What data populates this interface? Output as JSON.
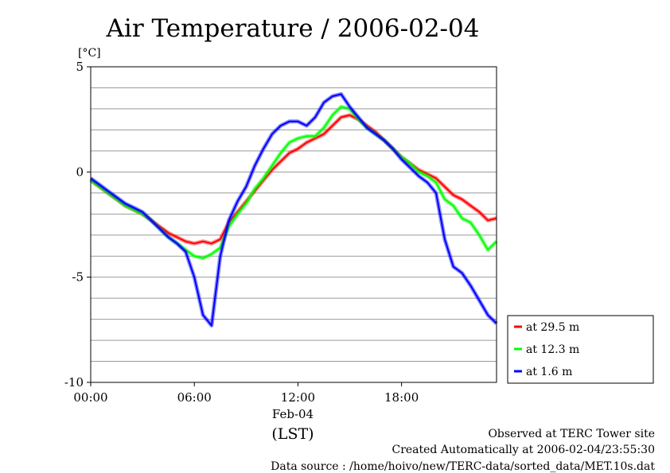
{
  "chart_data": {
    "type": "line",
    "title": "Air Temperature / 2006-02-04",
    "yunit": "[°C]",
    "ylim": [
      -10,
      5
    ],
    "yticks": [
      "5",
      "0",
      "-5",
      "-10"
    ],
    "xlim": [
      0,
      23.5
    ],
    "xticks": [
      "00:00",
      "06:00",
      "12:00",
      "18:00"
    ],
    "xdate": "Feb-04",
    "xlabel": "(LST)",
    "grid": "horizontal",
    "legend_position": "right",
    "x": [
      0,
      0.5,
      1,
      1.5,
      2,
      2.5,
      3,
      3.5,
      4,
      4.5,
      5,
      5.5,
      6,
      6.5,
      7,
      7.5,
      8,
      8.5,
      9,
      9.5,
      10,
      10.5,
      11,
      11.5,
      12,
      12.5,
      13,
      13.5,
      14,
      14.5,
      15,
      15.5,
      16,
      16.5,
      17,
      17.5,
      18,
      18.5,
      19,
      19.5,
      20,
      20.5,
      21,
      21.5,
      22,
      22.5,
      23,
      23.5
    ],
    "series": [
      {
        "name": "at 29.5 m",
        "color": "#ff0000",
        "values": [
          -0.4,
          -0.7,
          -1.0,
          -1.3,
          -1.6,
          -1.8,
          -2.0,
          -2.3,
          -2.6,
          -2.9,
          -3.1,
          -3.3,
          -3.4,
          -3.3,
          -3.4,
          -3.2,
          -2.4,
          -1.9,
          -1.4,
          -0.9,
          -0.4,
          0.1,
          0.5,
          0.9,
          1.1,
          1.4,
          1.6,
          1.8,
          2.2,
          2.6,
          2.7,
          2.5,
          2.2,
          1.9,
          1.5,
          1.1,
          0.7,
          0.4,
          0.1,
          -0.1,
          -0.3,
          -0.7,
          -1.1,
          -1.3,
          -1.6,
          -1.9,
          -2.3,
          -2.2
        ]
      },
      {
        "name": "at 12.3 m",
        "color": "#00ff00",
        "values": [
          -0.4,
          -0.7,
          -1.0,
          -1.3,
          -1.6,
          -1.8,
          -2.0,
          -2.3,
          -2.7,
          -3.1,
          -3.4,
          -3.7,
          -4.0,
          -4.1,
          -3.9,
          -3.6,
          -2.6,
          -2.0,
          -1.5,
          -0.8,
          -0.3,
          0.3,
          0.9,
          1.4,
          1.6,
          1.7,
          1.7,
          2.1,
          2.7,
          3.1,
          3.0,
          2.5,
          2.1,
          1.8,
          1.5,
          1.1,
          0.7,
          0.4,
          0.0,
          -0.2,
          -0.5,
          -1.3,
          -1.6,
          -2.2,
          -2.4,
          -3.0,
          -3.7,
          -3.3
        ]
      },
      {
        "name": "at 1.6 m",
        "color": "#0000ff",
        "values": [
          -0.3,
          -0.6,
          -0.9,
          -1.2,
          -1.5,
          -1.7,
          -1.9,
          -2.3,
          -2.7,
          -3.1,
          -3.4,
          -3.8,
          -5.0,
          -6.8,
          -7.3,
          -4.0,
          -2.3,
          -1.4,
          -0.7,
          0.3,
          1.1,
          1.8,
          2.2,
          2.4,
          2.4,
          2.2,
          2.6,
          3.3,
          3.6,
          3.7,
          3.1,
          2.6,
          2.1,
          1.8,
          1.5,
          1.1,
          0.6,
          0.2,
          -0.2,
          -0.5,
          -1.0,
          -3.2,
          -4.5,
          -4.8,
          -5.4,
          -6.1,
          -6.8,
          -7.2
        ]
      }
    ]
  },
  "footer": {
    "line1": "Observed at TERC Tower site",
    "line2": "Created Automatically at 2006-02-04/23:55:30",
    "line3": "Data source : /home/hoivo/new/TERC-data/sorted_data/MET.10s.dat"
  }
}
